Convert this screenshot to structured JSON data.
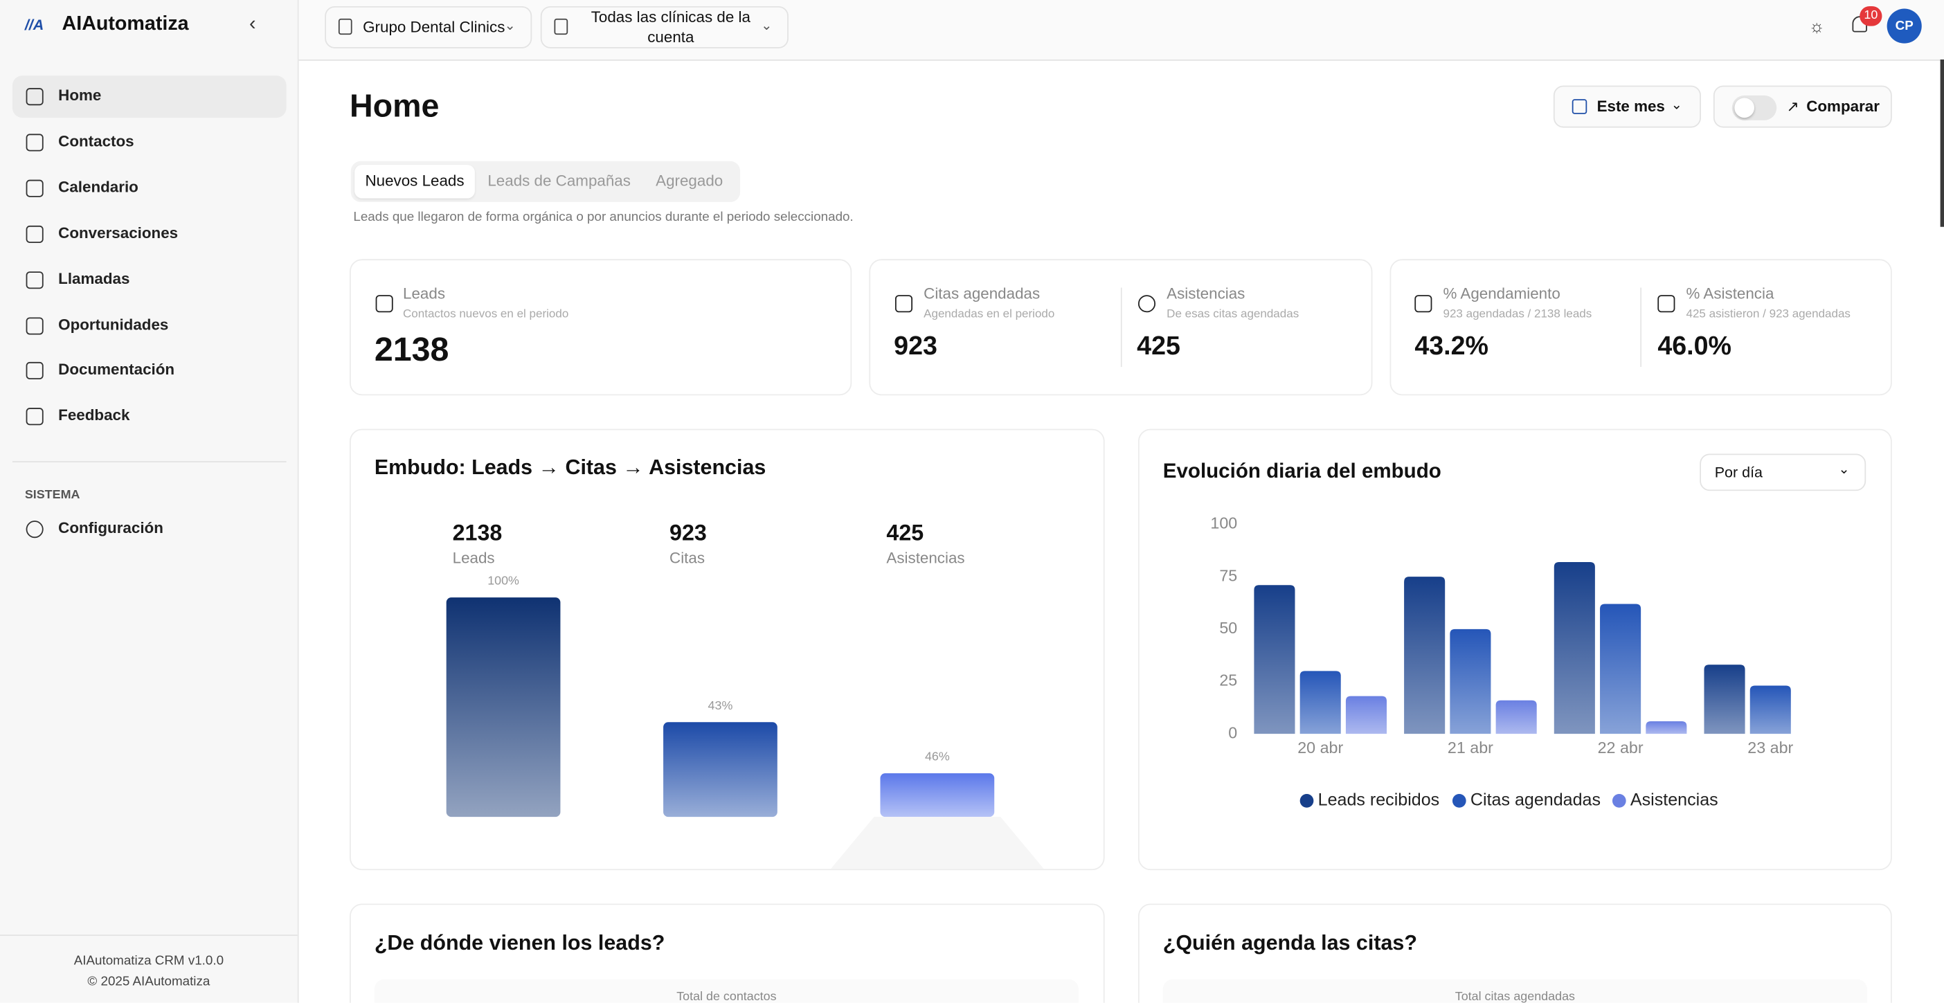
{
  "sidebar": {
    "brand": "AIAutomatiza",
    "nav": [
      "Home",
      "Contactos",
      "Calendario",
      "Conversaciones",
      "Llamadas",
      "Oportunidades",
      "Documentación",
      "Feedback"
    ],
    "section": "SISTEMA",
    "settings": "Configuración",
    "footer": [
      "AIAutomatiza CRM v1.0.0",
      "© 2025 AIAutomatiza"
    ]
  },
  "topbar": {
    "organization": "Grupo Dental Clinics",
    "clinics": "Todas las clínicas de la cuenta",
    "notifications": 10,
    "avatar": "CP"
  },
  "header": {
    "title": "Home",
    "period": "Este mes",
    "compare": "Comparar"
  },
  "tabs": {
    "items": [
      "Nuevos Leads",
      "Leads de Campañas",
      "Agregado"
    ],
    "description": "Leads que llegaron de forma orgánica o por anuncios durante el periodo seleccionado."
  },
  "kpis": [
    {
      "label": "Leads",
      "sub": "Contactos nuevos en el periodo",
      "value": 2138
    },
    {
      "label": "Citas agendadas",
      "sub": "Agendadas en el periodo",
      "value": 923
    },
    {
      "label": "Asistencias",
      "sub": "De esas citas agendadas",
      "value": 425
    },
    {
      "label": "% Agendamiento",
      "sub": "923 agendadas / 2138 leads",
      "value": "43.2%"
    },
    {
      "label": "% Asistencia",
      "sub": "425 asistieron / 923 agendadas",
      "value": "46.0%"
    }
  ],
  "chart_data": [
    {
      "type": "funnel",
      "title": "Embudo: Leads → Citas → Asistencias",
      "categories": [
        "Leads",
        "Citas",
        "Asistencias"
      ],
      "values": [
        2138,
        923,
        425
      ],
      "conversion": [
        100,
        43,
        46
      ],
      "conversion_labels": [
        "100%",
        "43%",
        "46%"
      ],
      "colors": [
        "#0f3272",
        "#1c4aa8",
        "#5b78ea"
      ]
    },
    {
      "type": "bar",
      "title": "Evolución diaria del embudo",
      "control": "Por día",
      "categories": [
        "20 abr",
        "21 abr",
        "22 abr",
        "23 abr"
      ],
      "series": [
        {
          "name": "Leads recibidos",
          "color": "#173f8a",
          "values": [
            71,
            75,
            82,
            33
          ]
        },
        {
          "name": "Citas agendadas",
          "color": "#2556b8",
          "values": [
            30,
            50,
            62,
            23
          ]
        },
        {
          "name": "Asistencias",
          "color": "#6a80e2",
          "values": [
            18,
            16,
            6,
            null
          ]
        }
      ],
      "ylim": [
        0,
        100
      ],
      "yticks": [
        0,
        25,
        50,
        75,
        100
      ],
      "legend": "bottom"
    }
  ],
  "sections": [
    {
      "title": "¿De dónde vienen los leads?",
      "subtitle": "Total de contactos"
    },
    {
      "title": "¿Quién agenda las citas?",
      "subtitle": "Total citas agendadas"
    }
  ]
}
